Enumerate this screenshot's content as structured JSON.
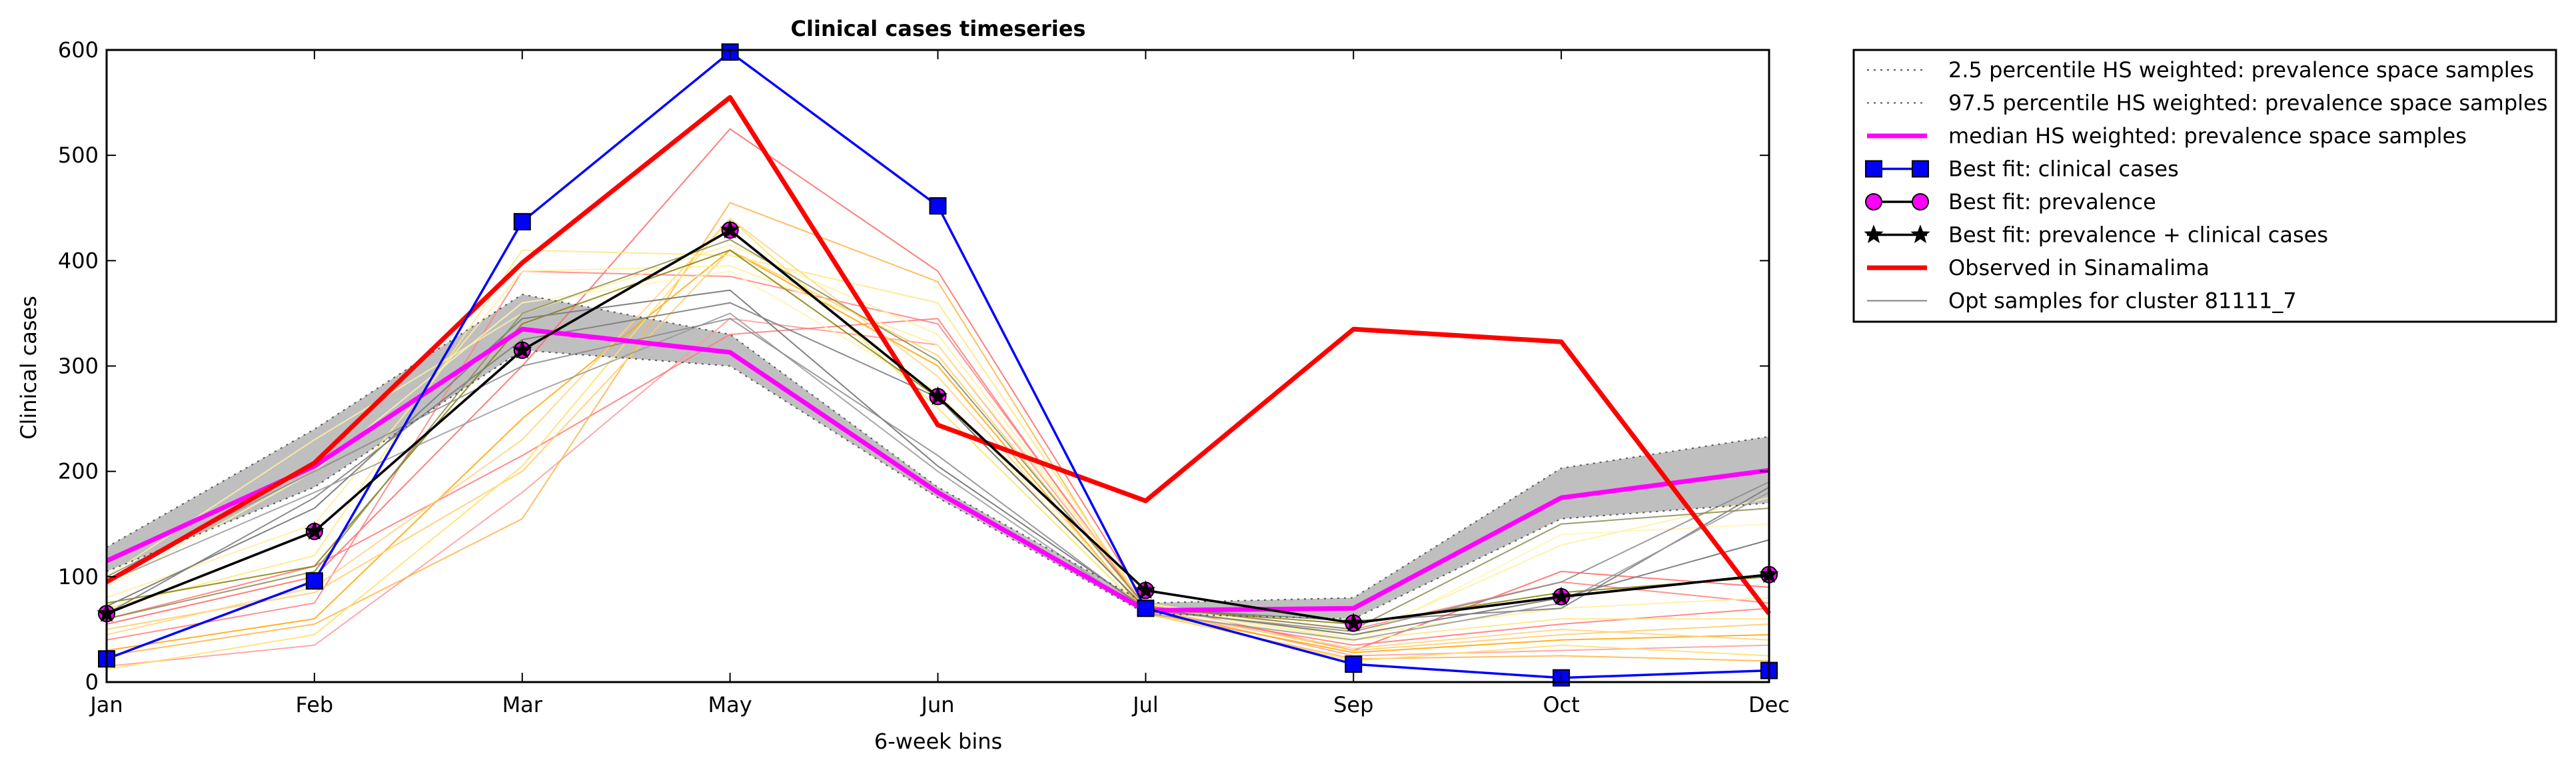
{
  "chart_data": {
    "type": "line",
    "title": "Clinical cases timeseries",
    "xlabel": "6-week bins",
    "ylabel": "Clinical cases",
    "categories": [
      "Jan",
      "Feb",
      "Mar",
      "May",
      "Jun",
      "Jul",
      "Sep",
      "Oct",
      "Dec"
    ],
    "yticks": [
      0,
      100,
      200,
      300,
      400,
      500,
      600
    ],
    "ylim": [
      0,
      600
    ],
    "grid": false,
    "legend_position": "outside-top-right",
    "band": {
      "lower": [
        105,
        185,
        315,
        300,
        175,
        65,
        60,
        155,
        170
      ],
      "upper": [
        128,
        240,
        368,
        330,
        185,
        75,
        80,
        203,
        233
      ],
      "fill_color": "#bfbfbf"
    },
    "series": [
      {
        "name": "2.5 percentile HS weighted: prevalence space samples",
        "color": "#555555",
        "style": "dotted",
        "values": [
          105,
          185,
          315,
          300,
          175,
          65,
          60,
          155,
          170
        ]
      },
      {
        "name": "97.5 percentile HS weighted: prevalence space samples",
        "color": "#555555",
        "style": "dotted",
        "values": [
          128,
          240,
          368,
          330,
          185,
          75,
          80,
          203,
          233
        ]
      },
      {
        "name": "median HS weighted: prevalence space samples",
        "color": "#ff00ff",
        "style": "solid",
        "marker": "none",
        "values": [
          115,
          205,
          335,
          313,
          180,
          68,
          70,
          175,
          201
        ]
      },
      {
        "name": "Best fit: clinical cases",
        "color": "#0000ff",
        "style": "solid",
        "marker": "square",
        "marker_color": "#0000ff",
        "values": [
          22,
          96,
          437,
          598,
          452,
          70,
          17,
          4,
          11
        ]
      },
      {
        "name": "Best fit: prevalence",
        "color": "#000000",
        "style": "solid",
        "marker": "circle",
        "marker_color": "#ff00ff",
        "values": [
          65,
          143,
          315,
          429,
          271,
          87,
          56,
          81,
          102
        ]
      },
      {
        "name": "Best fit: prevalence + clinical cases",
        "color": "#000000",
        "style": "solid",
        "marker": "star",
        "marker_color": "#000000",
        "values": [
          65,
          143,
          315,
          429,
          271,
          87,
          56,
          81,
          102
        ]
      },
      {
        "name": "Observed in Sinamalima",
        "color": "#ff0000",
        "style": "solid",
        "marker": "none",
        "values": [
          95,
          208,
          398,
          555,
          244,
          172,
          335,
          323,
          65
        ]
      },
      {
        "name": "Opt samples for cluster 81111_7",
        "color": "#808080",
        "style": "solid",
        "marker": "none",
        "values": [
          72,
          165,
          345,
          372,
          205,
          70,
          45,
          80,
          135
        ]
      }
    ],
    "sample_lines": [
      {
        "color": "#ff6666",
        "values": [
          55,
          100,
          300,
          525,
          390,
          75,
          30,
          105,
          90
        ]
      },
      {
        "color": "#ff8080",
        "values": [
          40,
          75,
          390,
          385,
          340,
          72,
          50,
          95,
          75
        ]
      },
      {
        "color": "#ff9999",
        "values": [
          15,
          35,
          180,
          345,
          320,
          70,
          25,
          30,
          35
        ]
      },
      {
        "color": "#ff7777",
        "values": [
          60,
          110,
          215,
          330,
          345,
          68,
          35,
          55,
          70
        ]
      },
      {
        "color": "#ffa500",
        "values": [
          30,
          60,
          250,
          410,
          300,
          66,
          28,
          40,
          45
        ]
      },
      {
        "color": "#ffb347",
        "values": [
          25,
          55,
          155,
          455,
          380,
          65,
          22,
          25,
          20
        ]
      },
      {
        "color": "#ffcc66",
        "values": [
          50,
          85,
          200,
          410,
          310,
          70,
          30,
          45,
          55
        ]
      },
      {
        "color": "#ffd27f",
        "values": [
          45,
          90,
          230,
          440,
          290,
          68,
          32,
          50,
          40
        ]
      },
      {
        "color": "#ffe680",
        "values": [
          70,
          120,
          410,
          405,
          360,
          72,
          40,
          60,
          60
        ]
      },
      {
        "color": "#ffee99",
        "values": [
          80,
          150,
          390,
          395,
          320,
          75,
          45,
          70,
          80
        ]
      },
      {
        "color": "#fff0a0",
        "values": [
          100,
          230,
          350,
          415,
          330,
          74,
          42,
          130,
          175
        ]
      },
      {
        "color": "#ffe066",
        "values": [
          12,
          45,
          205,
          440,
          260,
          66,
          20,
          35,
          25
        ]
      },
      {
        "color": "#fff5b0",
        "values": [
          90,
          200,
          360,
          390,
          275,
          70,
          38,
          140,
          150
        ]
      },
      {
        "color": "#808000",
        "values": [
          75,
          110,
          340,
          410,
          270,
          70,
          55,
          85,
          100
        ]
      },
      {
        "color": "#777777",
        "values": [
          65,
          175,
          325,
          360,
          270,
          70,
          58,
          70,
          185
        ]
      },
      {
        "color": "#999999",
        "values": [
          95,
          180,
          270,
          350,
          200,
          65,
          40,
          75,
          180
        ]
      },
      {
        "color": "#8a8a8a",
        "values": [
          100,
          200,
          300,
          345,
          215,
          68,
          48,
          95,
          190
        ]
      },
      {
        "color": "#8b8b50",
        "values": [
          60,
          105,
          350,
          420,
          305,
          72,
          50,
          150,
          165
        ]
      }
    ]
  }
}
